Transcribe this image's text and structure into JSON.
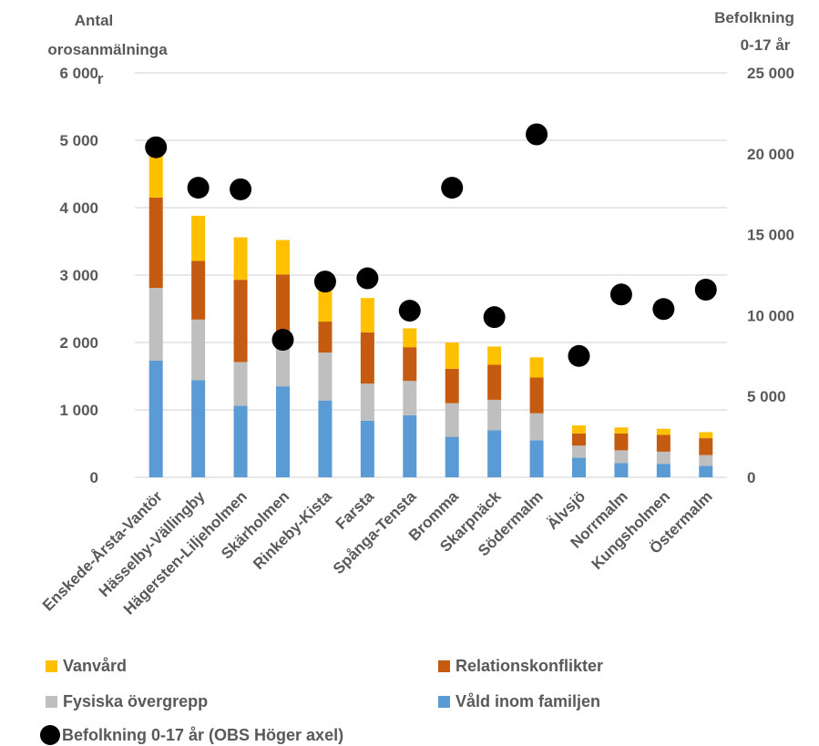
{
  "chart_data": {
    "type": "bar",
    "stacked": true,
    "y_left_title": [
      "Antal",
      "orosanmälninga",
      "r"
    ],
    "y_right_title": [
      "Befolkning",
      "0-17 år"
    ],
    "ylim_left": [
      0,
      6000
    ],
    "ylim_right": [
      0,
      25000
    ],
    "left_ticks": [
      "0",
      "1 000",
      "2 000",
      "3 000",
      "4 000",
      "5 000",
      "6 000"
    ],
    "right_ticks": [
      "0",
      "5 000",
      "10 000",
      "15 000",
      "20 000",
      "25 000"
    ],
    "grid": true,
    "legend_position": "bottom",
    "categories": [
      "Enskede-Årsta-Vantör",
      "Hässelby-Vällingby",
      "Hägersten-Liljeholmen",
      "Skärholmen",
      "Rinkeby-Kista",
      "Farsta",
      "Spånga-Tensta",
      "Bromma",
      "Skarpnäck",
      "Södermalm",
      "Älvsjö",
      "Norrmalm",
      "Kungsholmen",
      "Östermalm"
    ],
    "series": [
      {
        "name": "Våld inom familjen",
        "color": "#5B9BD5",
        "axis": "left",
        "values": [
          1730,
          1440,
          1060,
          1350,
          1140,
          840,
          920,
          600,
          700,
          550,
          290,
          210,
          200,
          170
        ]
      },
      {
        "name": "Fysiska övergrepp",
        "color": "#BFBFBF",
        "axis": "left",
        "values": [
          1080,
          900,
          650,
          570,
          710,
          550,
          510,
          500,
          450,
          400,
          180,
          190,
          180,
          160
        ]
      },
      {
        "name": "Relationskonflikter",
        "color": "#C55A11",
        "axis": "left",
        "values": [
          1340,
          870,
          1220,
          1090,
          460,
          760,
          500,
          510,
          520,
          530,
          180,
          250,
          250,
          250
        ]
      },
      {
        "name": "Vanvård",
        "color": "#FFC000",
        "axis": "left",
        "values": [
          690,
          670,
          630,
          510,
          470,
          510,
          280,
          390,
          270,
          300,
          120,
          90,
          90,
          90
        ]
      },
      {
        "name": "Befolkning 0-17 år (OBS Höger axel)",
        "color": "#000000",
        "axis": "right",
        "marker": "circle",
        "values": [
          20400,
          17900,
          17800,
          8500,
          12100,
          12300,
          10300,
          17900,
          9900,
          21200,
          7500,
          11300,
          10400,
          11600
        ]
      }
    ],
    "legend": [
      {
        "label": "Vanvård",
        "color": "#FFC000"
      },
      {
        "label": "Relationskonflikter",
        "color": "#C55A11"
      },
      {
        "label": "Fysiska övergrepp",
        "color": "#BFBFBF"
      },
      {
        "label": "Våld inom familjen",
        "color": "#5B9BD5"
      },
      {
        "label": "Befolkning 0-17 år (OBS Höger axel)",
        "color": "#000000"
      }
    ]
  }
}
